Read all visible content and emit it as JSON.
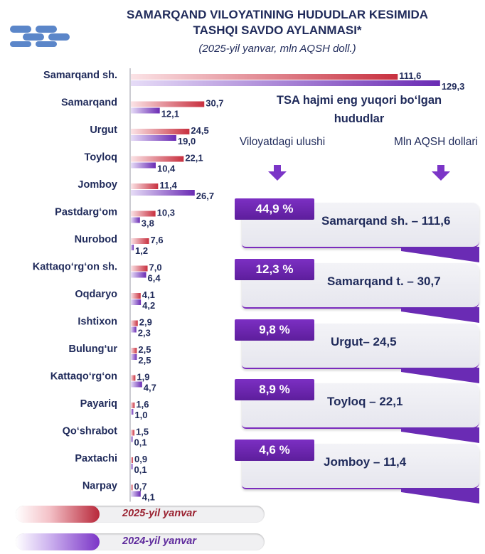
{
  "header": {
    "title_line1": "SAMARQAND VILOYATINING HUDUDLAR KESIMIDA",
    "title_line2": "TASHQI SAVDO AYLANMASI*",
    "subtitle": "(2025-yil yanvar, mln AQSH doll.)"
  },
  "chart_data": {
    "type": "bar",
    "orientation": "horizontal",
    "categories": [
      "Samarqand sh.",
      "Samarqand",
      "Urgut",
      "Toyloq",
      "Jomboy",
      "Pastdarg‘om",
      "Nurobod",
      "Kattaqo‘rg‘on sh.",
      "Oqdaryo",
      "Ishtixon",
      "Bulung‘ur",
      "Kattaqo‘rg‘on",
      "Payariq",
      "Qo‘shrabot",
      "Paxtachi",
      "Narpay"
    ],
    "series": [
      {
        "name": "2025-yil yanvar",
        "color": "#d9434f",
        "values": [
          111.6,
          30.7,
          24.5,
          22.1,
          11.4,
          10.3,
          7.6,
          7.0,
          4.1,
          2.9,
          2.5,
          1.9,
          1.6,
          1.5,
          0.9,
          0.7
        ]
      },
      {
        "name": "2024-yil yanvar",
        "color": "#7b35c7",
        "values": [
          129.3,
          12.1,
          19.0,
          10.4,
          26.7,
          3.8,
          1.2,
          6.4,
          4.2,
          2.3,
          2.5,
          4.7,
          1.0,
          0.1,
          0.1,
          4.1
        ]
      }
    ],
    "value_labels_2025": [
      "111,6",
      "30,7",
      "24,5",
      "22,1",
      "11,4",
      "10,3",
      "7,6",
      "7,0",
      "4,1",
      "2,9",
      "2,5",
      "1,9",
      "1,6",
      "1,5",
      "0,9",
      "0,7"
    ],
    "value_labels_2024": [
      "129,3",
      "12,1",
      "19,0",
      "10,4",
      "26,7",
      "3,8",
      "1,2",
      "6,4",
      "4,2",
      "2,3",
      "2,5",
      "4,7",
      "1,0",
      "0,1",
      "0,1",
      "4,1"
    ],
    "xlim": [
      0,
      135
    ],
    "grid": false
  },
  "panel": {
    "title": "TSA hajmi eng yuqori bo‘lgan hududlar",
    "col_share": "Viloyatdagi ulushi",
    "col_usd": "Mln AQSH dollari",
    "items": [
      {
        "share": "44,9 %",
        "text": "Samarqand sh. – 111,6"
      },
      {
        "share": "12,3 %",
        "text": "Samarqand t. – 30,7"
      },
      {
        "share": "9,8 %",
        "text": "Urgut– 24,5"
      },
      {
        "share": "8,9 %",
        "text": "Toyloq – 22,1"
      },
      {
        "share": "4,6 %",
        "text": "Jomboy – 11,4"
      }
    ]
  },
  "legend": {
    "label_2025": "2025-yil yanvar",
    "label_2024": "2024-yil yanvar",
    "color_2025": "#b8283a",
    "color_2024": "#7b35c7"
  }
}
